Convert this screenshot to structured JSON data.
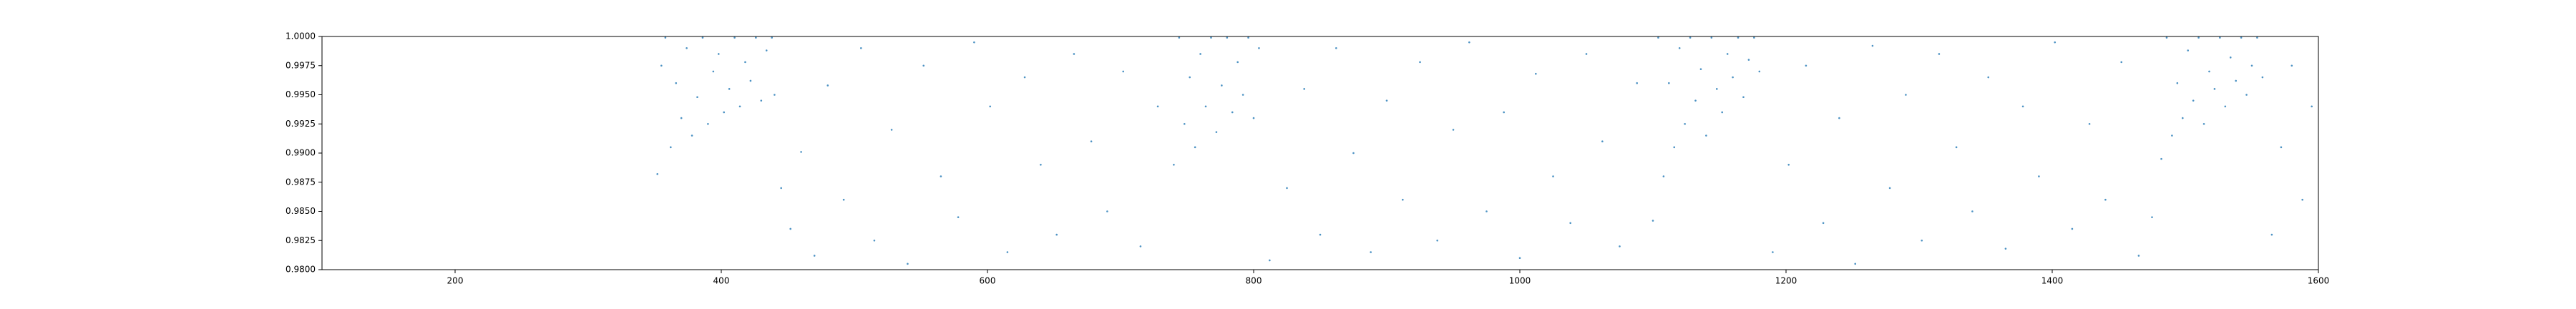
{
  "chart_data": {
    "type": "scatter",
    "series": [
      {
        "color": "#1f77b4",
        "x": [
          352,
          355,
          358,
          362,
          366,
          370,
          374,
          378,
          382,
          386,
          390,
          394,
          398,
          402,
          406,
          410,
          414,
          418,
          422,
          426,
          430,
          434,
          438,
          440,
          445,
          452,
          460,
          470,
          480,
          492,
          505,
          515,
          528,
          540,
          552,
          565,
          578,
          590,
          602,
          615,
          628,
          640,
          652,
          665,
          678,
          690,
          702,
          715,
          728,
          740,
          744,
          748,
          752,
          756,
          760,
          764,
          768,
          772,
          776,
          780,
          784,
          788,
          792,
          796,
          800,
          804,
          812,
          825,
          838,
          850,
          862,
          875,
          888,
          900,
          912,
          925,
          938,
          950,
          962,
          975,
          988,
          1000,
          1012,
          1025,
          1038,
          1050,
          1062,
          1075,
          1088,
          1100,
          1104,
          1108,
          1112,
          1116,
          1120,
          1124,
          1128,
          1132,
          1136,
          1140,
          1144,
          1148,
          1152,
          1156,
          1160,
          1164,
          1168,
          1172,
          1176,
          1180,
          1190,
          1202,
          1215,
          1228,
          1240,
          1252,
          1265,
          1278,
          1290,
          1302,
          1315,
          1328,
          1340,
          1352,
          1365,
          1378,
          1390,
          1402,
          1415,
          1428,
          1440,
          1452,
          1465,
          1475,
          1482,
          1486,
          1490,
          1494,
          1498,
          1502,
          1506,
          1510,
          1514,
          1518,
          1522,
          1526,
          1530,
          1534,
          1538,
          1542,
          1546,
          1550,
          1554,
          1558,
          1565,
          1572,
          1580,
          1588,
          1595
        ],
        "values": [
          0.9882,
          0.9975,
          0.9999,
          0.9905,
          0.996,
          0.993,
          0.999,
          0.9915,
          0.9948,
          0.9999,
          0.9925,
          0.997,
          0.9985,
          0.9935,
          0.9955,
          0.9999,
          0.994,
          0.9978,
          0.9962,
          0.9999,
          0.9945,
          0.9988,
          0.9999,
          0.995,
          0.987,
          0.9835,
          0.9901,
          0.9812,
          0.9958,
          0.986,
          0.999,
          0.9825,
          0.992,
          0.9805,
          0.9975,
          0.988,
          0.9845,
          0.9995,
          0.994,
          0.9815,
          0.9965,
          0.989,
          0.983,
          0.9985,
          0.991,
          0.985,
          0.997,
          0.982,
          0.994,
          0.989,
          0.9999,
          0.9925,
          0.9965,
          0.9905,
          0.9985,
          0.994,
          0.9999,
          0.9918,
          0.9958,
          0.9999,
          0.9935,
          0.9978,
          0.995,
          0.9999,
          0.993,
          0.999,
          0.9808,
          0.987,
          0.9955,
          0.983,
          0.999,
          0.99,
          0.9815,
          0.9945,
          0.986,
          0.9978,
          0.9825,
          0.992,
          0.9995,
          0.985,
          0.9935,
          0.981,
          0.9968,
          0.988,
          0.984,
          0.9985,
          0.991,
          0.982,
          0.996,
          0.9842,
          0.9999,
          0.988,
          0.996,
          0.9905,
          0.999,
          0.9925,
          0.9999,
          0.9945,
          0.9972,
          0.9915,
          0.9999,
          0.9955,
          0.9935,
          0.9985,
          0.9965,
          0.9999,
          0.9948,
          0.998,
          0.9999,
          0.997,
          0.9815,
          0.989,
          0.9975,
          0.984,
          0.993,
          0.9805,
          0.9992,
          0.987,
          0.995,
          0.9825,
          0.9985,
          0.9905,
          0.985,
          0.9965,
          0.9818,
          0.994,
          0.988,
          0.9995,
          0.9835,
          0.9925,
          0.986,
          0.9978,
          0.9812,
          0.9845,
          0.9895,
          0.9999,
          0.9915,
          0.996,
          0.993,
          0.9988,
          0.9945,
          0.9999,
          0.9925,
          0.997,
          0.9955,
          0.9999,
          0.994,
          0.9982,
          0.9962,
          0.9999,
          0.995,
          0.9975,
          0.9999,
          0.9965,
          0.983,
          0.9905,
          0.9975,
          0.986,
          0.994
        ]
      }
    ],
    "xlim": [
      100,
      1600
    ],
    "ylim": [
      0.98,
      1.0
    ],
    "xticks": [
      200,
      400,
      600,
      800,
      1000,
      1200,
      1400,
      1600
    ],
    "yticks": [
      {
        "value": 0.98,
        "label": "0.9800"
      },
      {
        "value": 0.9825,
        "label": "0.9825"
      },
      {
        "value": 0.985,
        "label": "0.9850"
      },
      {
        "value": 0.9875,
        "label": "0.9875"
      },
      {
        "value": 0.99,
        "label": "0.9900"
      },
      {
        "value": 0.9925,
        "label": "0.9925"
      },
      {
        "value": 0.995,
        "label": "0.9950"
      },
      {
        "value": 0.9975,
        "label": "0.9975"
      },
      {
        "value": 1.0,
        "label": "1.0000"
      }
    ]
  }
}
